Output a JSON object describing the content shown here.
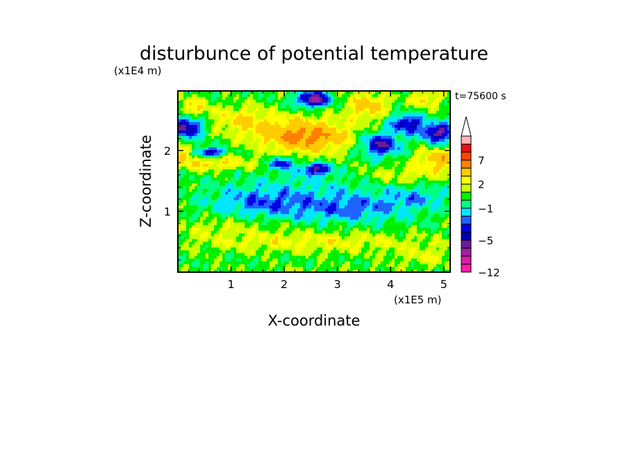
{
  "chart_data": {
    "type": "heatmap",
    "title": "disturbunce of potential temperature",
    "xlabel": "X-coordinate",
    "ylabel": "Z-coordinate",
    "x_unit": "(x1E5 m)",
    "y_unit": "(x1E4 m)",
    "time_label": "t=75600 s",
    "xlim": [
      0,
      5.12
    ],
    "ylim": [
      0,
      2.98
    ],
    "x_ticks": [
      1,
      2,
      3,
      4,
      5
    ],
    "y_ticks": [
      1,
      2
    ],
    "colorbar": {
      "levels": [
        -12,
        -10,
        -8,
        -6,
        -5,
        -4,
        -3,
        -2,
        -1,
        0,
        1,
        2,
        3,
        5,
        7,
        9,
        11,
        13
      ],
      "colors": [
        "#ff1aa8",
        "#d81fa6",
        "#a31ea3",
        "#6a1b9a",
        "#0000b4",
        "#0000e6",
        "#1e64ff",
        "#00e6ff",
        "#00ff80",
        "#00f000",
        "#ccff00",
        "#ffff00",
        "#ffcc00",
        "#ff8000",
        "#ff4400",
        "#e81010",
        "#ffb3b3",
        "#ffffff"
      ],
      "tick_labels": [
        "7",
        "2",
        "−1",
        "−5",
        "−12"
      ],
      "tick_values": [
        7,
        2,
        -1,
        -5,
        -12
      ],
      "extend": "max"
    },
    "field_features": [
      {
        "x": 2.4,
        "z": 2.25,
        "sx": 0.85,
        "sz": 0.28,
        "amp": 5.5
      },
      {
        "x": 3.55,
        "z": 2.75,
        "sx": 0.4,
        "sz": 0.22,
        "amp": 3.5
      },
      {
        "x": 4.95,
        "z": 1.85,
        "sx": 0.5,
        "sz": 0.18,
        "amp": 3.8
      },
      {
        "x": 4.65,
        "z": 2.85,
        "sx": 0.3,
        "sz": 0.15,
        "amp": 2.8
      },
      {
        "x": 0.6,
        "z": 1.8,
        "sx": 0.8,
        "sz": 0.12,
        "amp": 2.8
      },
      {
        "x": 0.1,
        "z": 1.98,
        "sx": 0.2,
        "sz": 0.12,
        "amp": 3.0
      },
      {
        "x": 0.25,
        "z": 2.7,
        "sx": 0.35,
        "sz": 0.18,
        "amp": 2.5
      },
      {
        "x": 1.2,
        "z": 2.5,
        "sx": 0.6,
        "sz": 0.25,
        "amp": 2.5
      },
      {
        "x": 4.2,
        "z": 1.6,
        "sx": 0.8,
        "sz": 0.15,
        "amp": 1.8
      },
      {
        "x": 2.5,
        "z": 0.5,
        "sx": 2.5,
        "sz": 0.18,
        "amp": 2.0
      },
      {
        "x": 0.8,
        "z": 0.75,
        "sx": 1.0,
        "sz": 0.15,
        "amp": 1.2
      },
      {
        "x": 4.8,
        "z": 0.25,
        "sx": 0.8,
        "sz": 0.15,
        "amp": 1.5
      },
      {
        "x": 2.5,
        "z": 0.05,
        "sx": 3.0,
        "sz": 0.08,
        "amp": 0.5
      },
      {
        "x": 2.55,
        "z": 2.85,
        "sx": 0.3,
        "sz": 0.12,
        "amp": -7.0
      },
      {
        "x": 2.6,
        "z": 1.7,
        "sx": 0.3,
        "sz": 0.09,
        "amp": -5.5
      },
      {
        "x": 1.95,
        "z": 1.8,
        "sx": 0.2,
        "sz": 0.1,
        "amp": -5.0
      },
      {
        "x": 0.6,
        "z": 1.98,
        "sx": 0.25,
        "sz": 0.08,
        "amp": -5.5
      },
      {
        "x": 0.15,
        "z": 2.4,
        "sx": 0.3,
        "sz": 0.18,
        "amp": -6.0
      },
      {
        "x": 3.8,
        "z": 2.1,
        "sx": 0.35,
        "sz": 0.18,
        "amp": -5.5
      },
      {
        "x": 4.3,
        "z": 2.45,
        "sx": 0.3,
        "sz": 0.15,
        "amp": -5.0
      },
      {
        "x": 4.9,
        "z": 2.3,
        "sx": 0.3,
        "sz": 0.15,
        "amp": -6.0
      },
      {
        "x": 3.2,
        "z": 1.05,
        "sx": 1.2,
        "sz": 0.22,
        "amp": -2.8
      },
      {
        "x": 1.5,
        "z": 1.15,
        "sx": 0.9,
        "sz": 0.22,
        "amp": -2.5
      },
      {
        "x": 4.5,
        "z": 1.25,
        "sx": 0.6,
        "sz": 0.18,
        "amp": -1.8
      },
      {
        "x": 2.5,
        "z": 1.4,
        "sx": 1.5,
        "sz": 0.25,
        "amp": -1.2
      }
    ]
  }
}
